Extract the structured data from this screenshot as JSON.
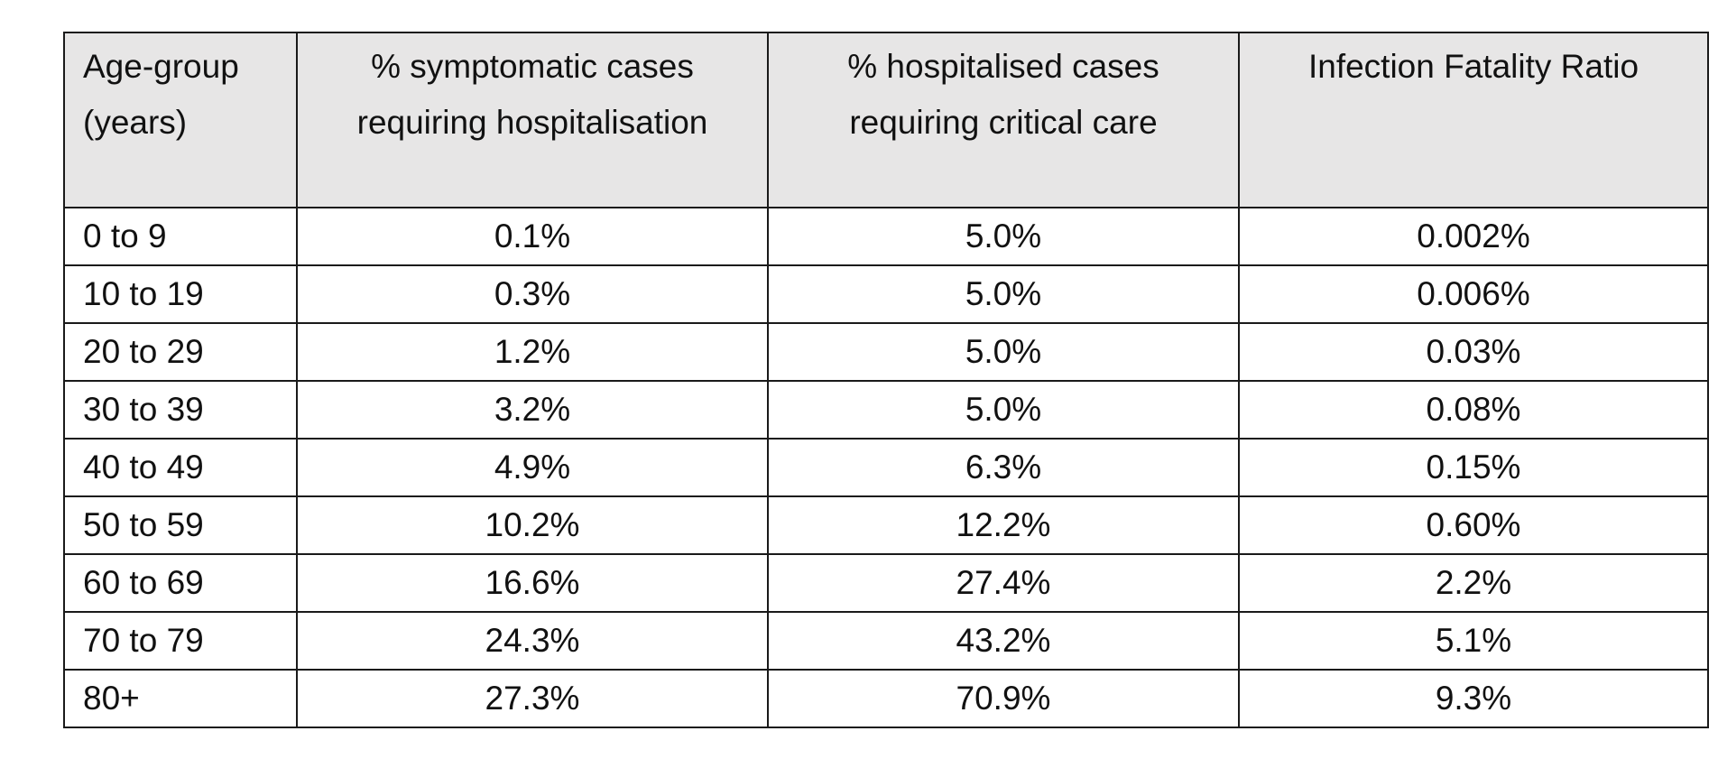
{
  "table": {
    "headers": [
      {
        "lines": [
          "Age-group",
          "(years)"
        ]
      },
      {
        "lines": [
          "% symptomatic cases",
          "requiring hospitalisation"
        ]
      },
      {
        "lines": [
          "% hospitalised cases",
          "requiring critical care"
        ]
      },
      {
        "lines": [
          "Infection Fatality Ratio"
        ]
      }
    ],
    "rows": [
      [
        "0 to 9",
        "0.1%",
        "5.0%",
        "0.002%"
      ],
      [
        "10 to 19",
        "0.3%",
        "5.0%",
        "0.006%"
      ],
      [
        "20 to 29",
        "1.2%",
        "5.0%",
        "0.03%"
      ],
      [
        "30 to 39",
        "3.2%",
        "5.0%",
        "0.08%"
      ],
      [
        "40 to 49",
        "4.9%",
        "6.3%",
        "0.15%"
      ],
      [
        "50 to 59",
        "10.2%",
        "12.2%",
        "0.60%"
      ],
      [
        "60 to 69",
        "16.6%",
        "27.4%",
        "2.2%"
      ],
      [
        "70 to 79",
        "24.3%",
        "43.2%",
        "5.1%"
      ],
      [
        "80+",
        "27.3%",
        "70.9%",
        "9.3%"
      ]
    ],
    "colors": {
      "header_background": "#e7e6e6",
      "border": "#1a1a1a"
    }
  }
}
